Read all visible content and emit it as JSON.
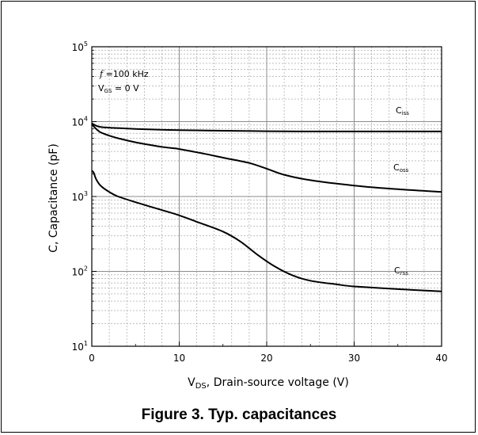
{
  "caption": "Figure 3. Typ. capacitances",
  "chart_data": {
    "type": "line",
    "title": "",
    "xlabel_main": "V",
    "xlabel_sub": "DS",
    "xlabel_rest": ", Drain-source voltage (V)",
    "ylabel": "C, Capacitance (pF)",
    "x_scale": "linear",
    "y_scale": "log",
    "xlim": [
      0,
      40
    ],
    "ylim": [
      10,
      100000
    ],
    "grid": true,
    "x_ticks": [
      0,
      10,
      20,
      30,
      40
    ],
    "x_tick_labels": [
      "0",
      "10",
      "20",
      "30",
      "40"
    ],
    "y_ticks": [
      10,
      100,
      1000,
      10000,
      100000
    ],
    "y_tick_labels": [
      {
        "base": "10",
        "exp": "1"
      },
      {
        "base": "10",
        "exp": "2"
      },
      {
        "base": "10",
        "exp": "3"
      },
      {
        "base": "10",
        "exp": "4"
      },
      {
        "base": "10",
        "exp": "5"
      }
    ],
    "annotations": {
      "freq_symbol": "f",
      "freq_value": " =100 kHz",
      "vgs_main": "V",
      "vgs_sub": "GS",
      "vgs_value": " = 0 V"
    },
    "series": [
      {
        "name_main": "C",
        "name_sub": "iss",
        "x": [
          0,
          0.5,
          1,
          2,
          3,
          5,
          8,
          10,
          15,
          20,
          25,
          30,
          35,
          40
        ],
        "y": [
          9500,
          8800,
          8500,
          8300,
          8200,
          8000,
          7800,
          7700,
          7550,
          7450,
          7400,
          7400,
          7400,
          7400
        ]
      },
      {
        "name_main": "C",
        "name_sub": "oss",
        "x": [
          0,
          0.5,
          1,
          2,
          3,
          5,
          8,
          10,
          13,
          15,
          18,
          20,
          22,
          25,
          30,
          35,
          40
        ],
        "y": [
          9200,
          8000,
          7200,
          6500,
          6000,
          5300,
          4600,
          4300,
          3700,
          3300,
          2800,
          2350,
          1950,
          1650,
          1400,
          1250,
          1150
        ]
      },
      {
        "name_main": "C",
        "name_sub": "rss",
        "x": [
          0,
          0.2,
          0.5,
          1,
          2,
          3,
          5,
          8,
          10,
          12,
          15,
          17,
          19,
          21,
          23,
          25,
          28,
          30,
          35,
          40
        ],
        "y": [
          2200,
          2100,
          1700,
          1400,
          1150,
          1000,
          840,
          660,
          560,
          460,
          340,
          250,
          165,
          115,
          88,
          75,
          67,
          63,
          58,
          54
        ]
      }
    ]
  }
}
